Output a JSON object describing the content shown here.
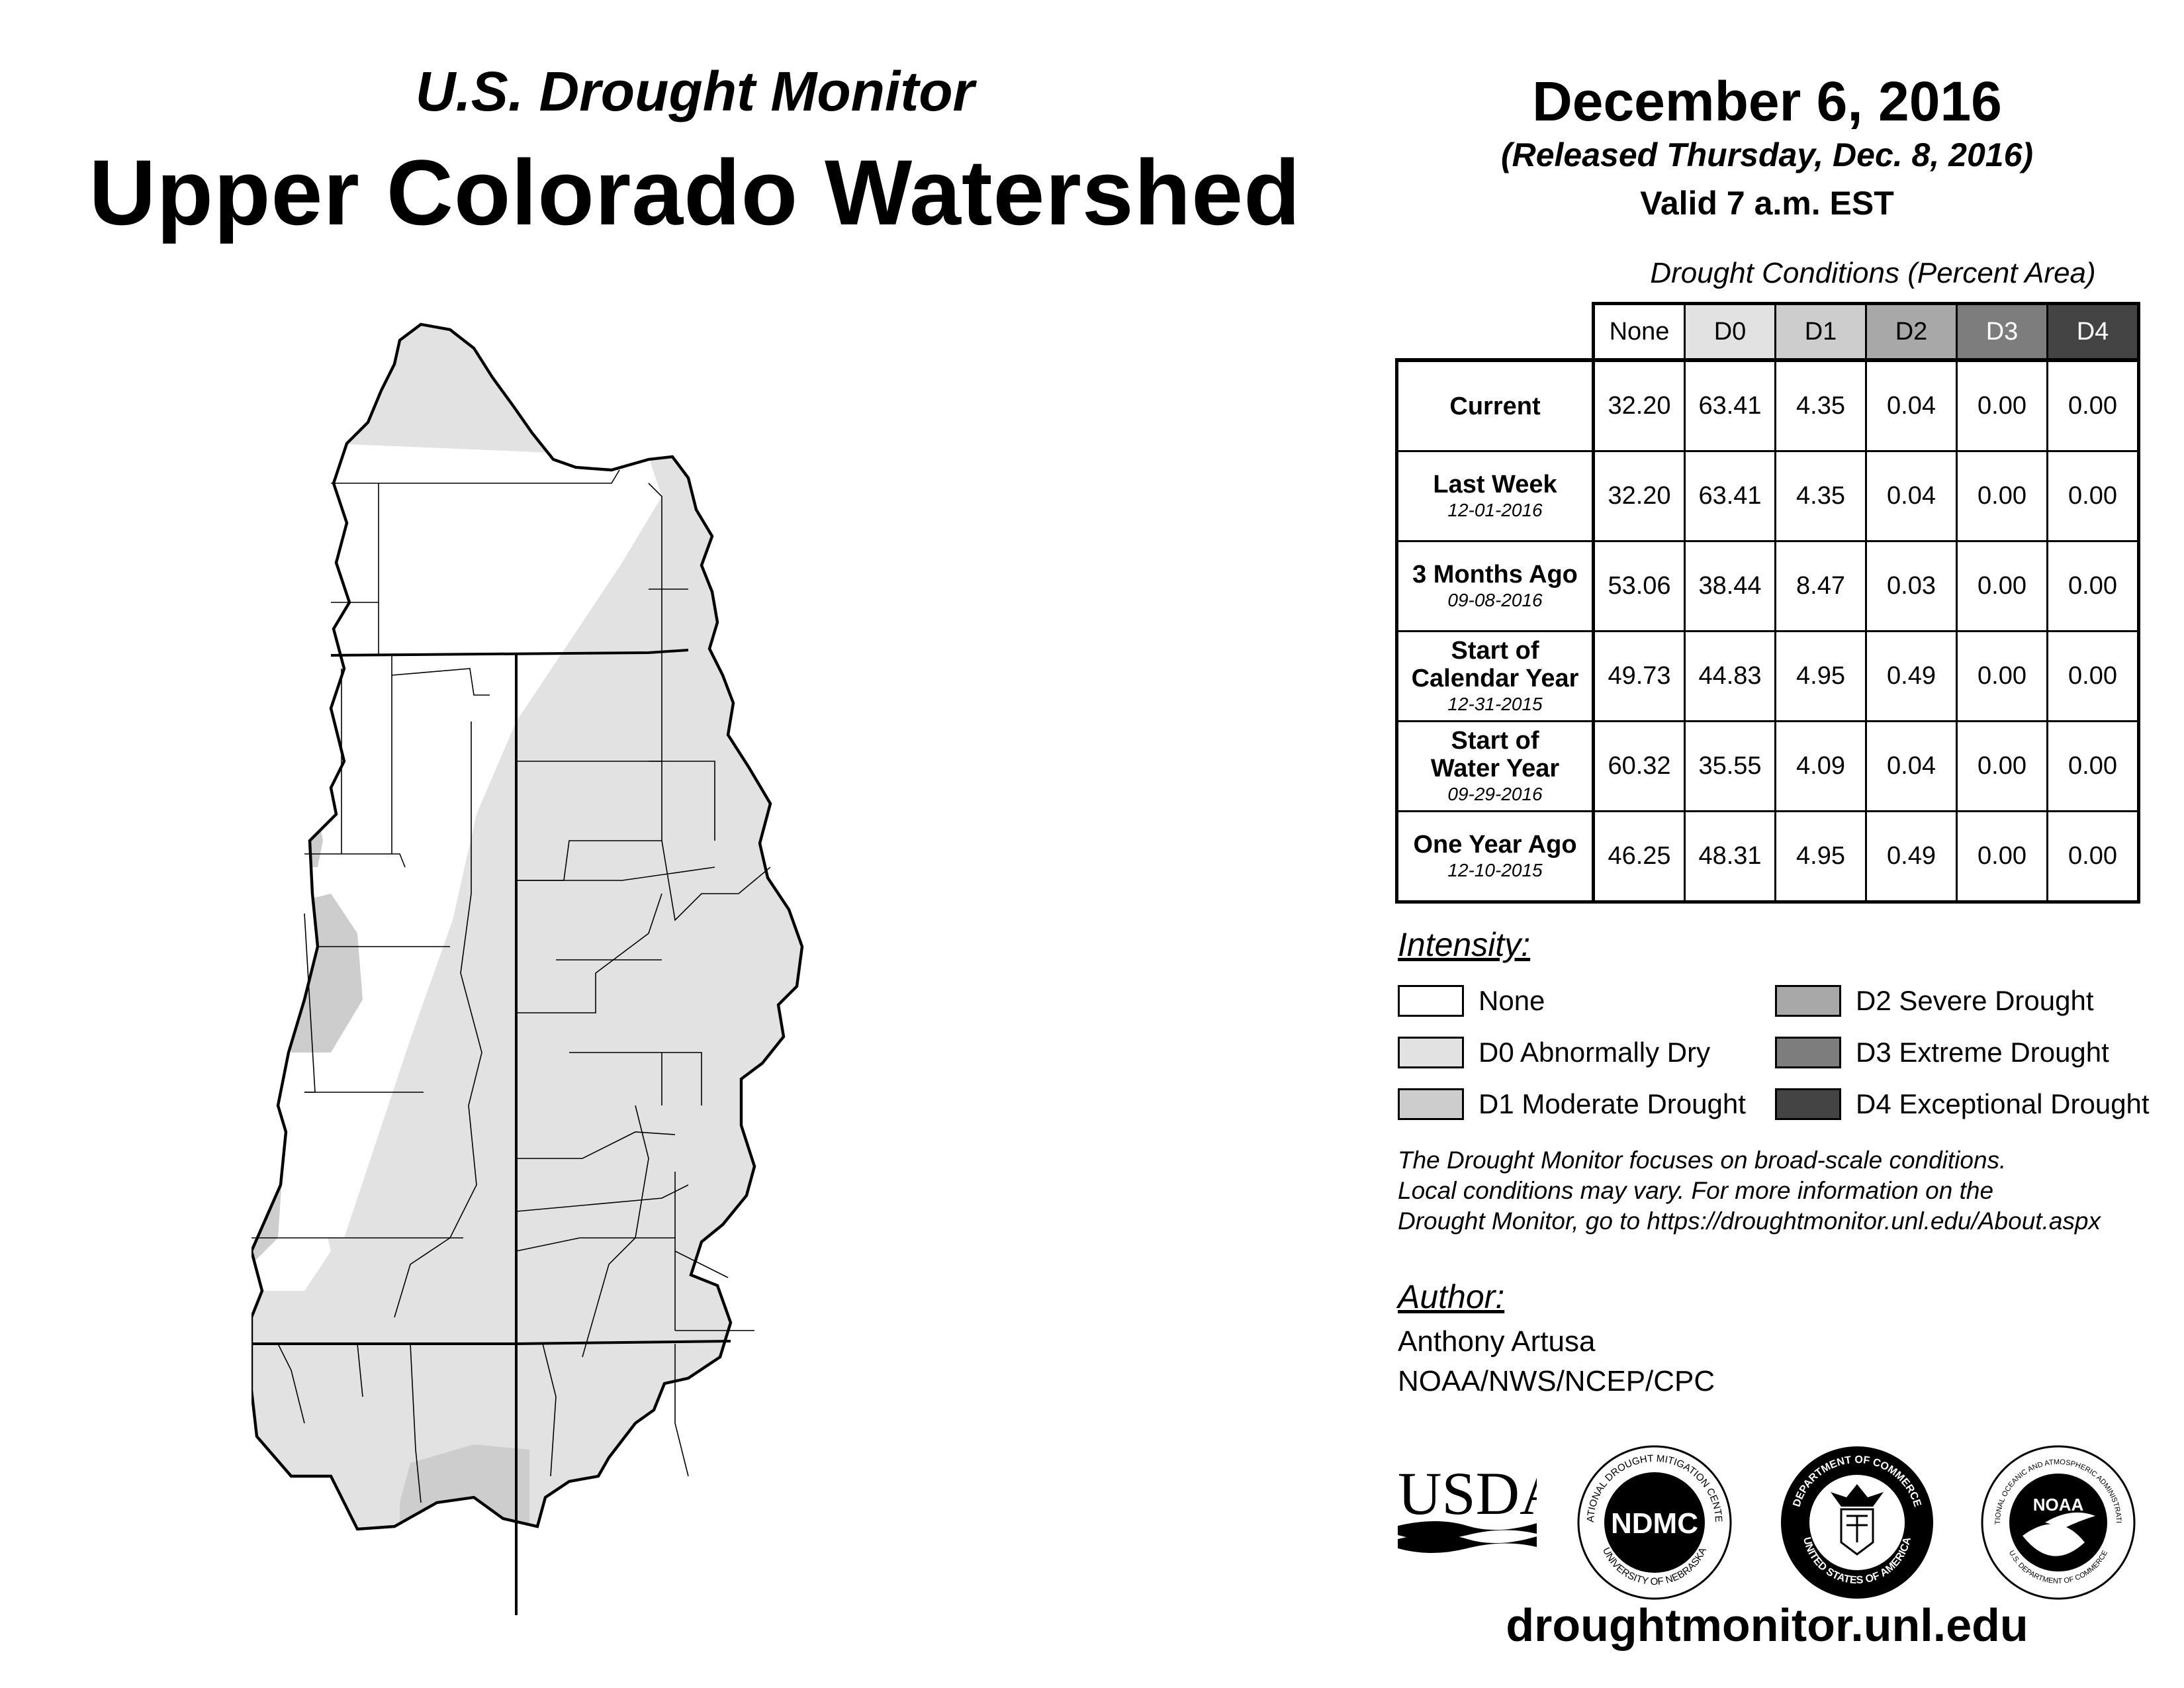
{
  "header": {
    "brand": "U.S. Drought Monitor",
    "region": "Upper Colorado Watershed",
    "date": "December 6, 2016",
    "released": "(Released Thursday, Dec. 8, 2016)",
    "valid": "Valid 7 a.m. EST"
  },
  "table": {
    "caption": "Drought Conditions (Percent Area)",
    "columns": [
      {
        "label": "None",
        "fill": "#ffffff",
        "text": "#000000"
      },
      {
        "label": "D0",
        "fill": "#e2e2e2",
        "text": "#000000"
      },
      {
        "label": "D1",
        "fill": "#cdcdcd",
        "text": "#000000"
      },
      {
        "label": "D2",
        "fill": "#a8a8a8",
        "text": "#000000"
      },
      {
        "label": "D3",
        "fill": "#7d7d7d",
        "text": "#ffffff"
      },
      {
        "label": "D4",
        "fill": "#444444",
        "text": "#ffffff"
      }
    ],
    "rows": [
      {
        "label_lines": [
          "Current"
        ],
        "date": "",
        "values": [
          "32.20",
          "63.41",
          "4.35",
          "0.04",
          "0.00",
          "0.00"
        ]
      },
      {
        "label_lines": [
          "Last Week"
        ],
        "date": "12-01-2016",
        "values": [
          "32.20",
          "63.41",
          "4.35",
          "0.04",
          "0.00",
          "0.00"
        ]
      },
      {
        "label_lines": [
          "3 Months Ago"
        ],
        "date": "09-08-2016",
        "values": [
          "53.06",
          "38.44",
          "8.47",
          "0.03",
          "0.00",
          "0.00"
        ]
      },
      {
        "label_lines": [
          "Start of",
          "Calendar Year"
        ],
        "date": "12-31-2015",
        "values": [
          "49.73",
          "44.83",
          "4.95",
          "0.49",
          "0.00",
          "0.00"
        ]
      },
      {
        "label_lines": [
          "Start of",
          "Water Year"
        ],
        "date": "09-29-2016",
        "values": [
          "60.32",
          "35.55",
          "4.09",
          "0.04",
          "0.00",
          "0.00"
        ]
      },
      {
        "label_lines": [
          "One Year Ago"
        ],
        "date": "12-10-2015",
        "values": [
          "46.25",
          "48.31",
          "4.95",
          "0.49",
          "0.00",
          "0.00"
        ]
      }
    ]
  },
  "legend": {
    "title": "Intensity:",
    "items": [
      {
        "label": "None",
        "color": "#ffffff"
      },
      {
        "label": "D0 Abnormally Dry",
        "color": "#e2e2e2"
      },
      {
        "label": "D1 Moderate Drought",
        "color": "#cdcdcd"
      },
      {
        "label": "D2 Severe Drought",
        "color": "#a8a8a8"
      },
      {
        "label": "D3 Extreme Drought",
        "color": "#7d7d7d"
      },
      {
        "label": "D4 Exceptional Drought",
        "color": "#444444"
      }
    ]
  },
  "disclaimer": [
    "The Drought Monitor focuses on broad-scale conditions.",
    "Local conditions may vary. For more information on the",
    "Drought Monitor, go to https://droughtmonitor.unl.edu/About.aspx"
  ],
  "author": {
    "title": "Author:",
    "name": "Anthony Artusa",
    "org": "NOAA/NWS/NCEP/CPC"
  },
  "logos": [
    {
      "name": "usda-logo",
      "text": "USDA"
    },
    {
      "name": "ndmc-logo",
      "text": "NDMC",
      "ring_top": "NATIONAL DROUGHT MITIGATION CENTER",
      "ring_bottom": "UNIVERSITY OF NEBRASKA"
    },
    {
      "name": "commerce-logo",
      "ring_top": "DEPARTMENT OF COMMERCE",
      "ring_bottom": "UNITED STATES OF AMERICA"
    },
    {
      "name": "noaa-logo",
      "text": "NOAA",
      "ring_top": "NATIONAL OCEANIC AND ATMOSPHERIC ADMINISTRATION",
      "ring_bottom": "U.S. DEPARTMENT OF COMMERCE"
    }
  ],
  "footer": {
    "url": "droughtmonitor.unl.edu"
  }
}
